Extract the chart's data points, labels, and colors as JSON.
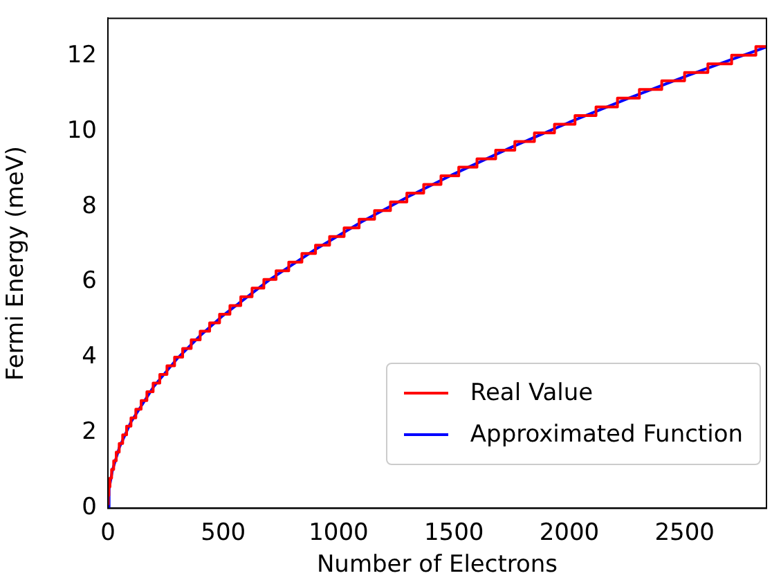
{
  "chart_data": {
    "type": "line",
    "xlabel": "Number of Electrons",
    "ylabel": "Fermi Energy (meV)",
    "xlim": [
      0,
      2855
    ],
    "xticks": [
      0,
      500,
      1000,
      1500,
      2000,
      2500
    ],
    "ylim": [
      0,
      13
    ],
    "yticks": [
      0,
      2,
      4,
      6,
      8,
      10,
      12
    ],
    "grid": false,
    "legend": "bottom right",
    "marker": "none",
    "line_style": "solid",
    "series": [
      {
        "name": "Real Value",
        "type": "step",
        "color": "#ff0000",
        "x": [
          0,
          1,
          4,
          9,
          16,
          25,
          36,
          49,
          64,
          81,
          100,
          121,
          144,
          169,
          196,
          225,
          256,
          289,
          324,
          361,
          400,
          441,
          484,
          529,
          576,
          625,
          676,
          729,
          784,
          841,
          900,
          961,
          1024,
          1089,
          1156,
          1225,
          1296,
          1369,
          1444,
          1521,
          1600,
          1681,
          1764,
          1849,
          1936,
          2025,
          2116,
          2209,
          2304,
          2401,
          2500,
          2601,
          2704,
          2809,
          2855
        ],
        "values": [
          0.11,
          0.34,
          0.57,
          0.8,
          1.03,
          1.26,
          1.49,
          1.72,
          1.95,
          2.18,
          2.4,
          2.63,
          2.86,
          3.09,
          3.32,
          3.55,
          3.78,
          4.01,
          4.24,
          4.47,
          4.7,
          4.92,
          5.15,
          5.38,
          5.61,
          5.84,
          6.07,
          6.3,
          6.53,
          6.76,
          6.98,
          7.21,
          7.44,
          7.67,
          7.9,
          8.13,
          8.36,
          8.59,
          8.82,
          9.05,
          9.27,
          9.5,
          9.73,
          9.96,
          10.19,
          10.42,
          10.65,
          10.88,
          11.11,
          11.34,
          11.56,
          11.79,
          12.02,
          12.25,
          12.25
        ]
      },
      {
        "name": "Approximated Function",
        "type": "line",
        "color": "#0000ff",
        "x": [
          0,
          5,
          20,
          50,
          100,
          200,
          300,
          400,
          500,
          700,
          900,
          1100,
          1300,
          1500,
          1750,
          2000,
          2250,
          2500,
          2700,
          2855
        ],
        "values": [
          0,
          0.51,
          1.02,
          1.62,
          2.29,
          3.24,
          3.97,
          4.58,
          5.12,
          6.06,
          6.87,
          7.6,
          8.26,
          8.87,
          9.58,
          10.24,
          10.86,
          11.45,
          11.9,
          12.24
        ]
      }
    ]
  }
}
